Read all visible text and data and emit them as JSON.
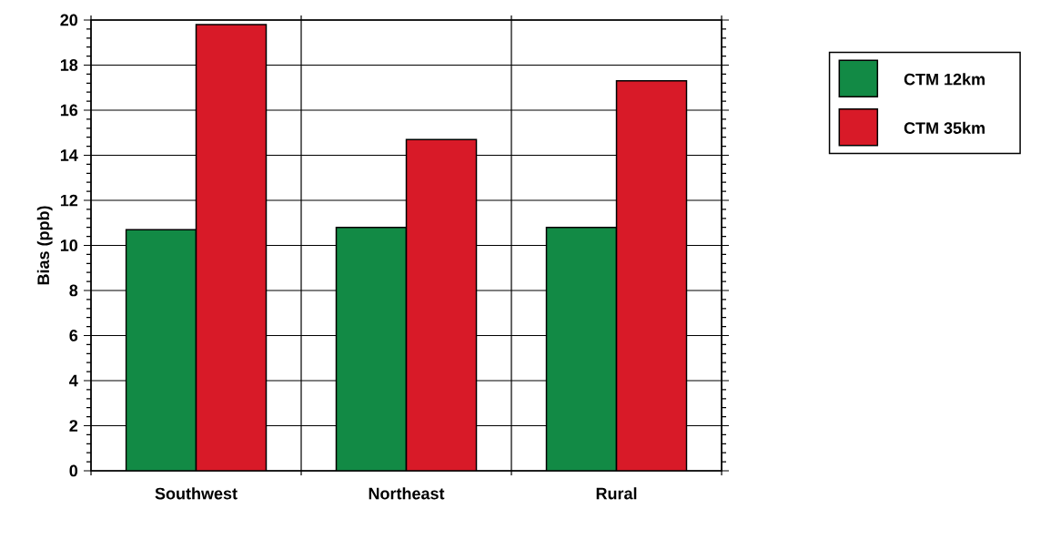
{
  "chart_data": {
    "type": "bar",
    "ylabel": "Bias (ppb)",
    "categories": [
      "Southwest",
      "Northeast",
      "Rural"
    ],
    "series": [
      {
        "name": "CTM 12km",
        "color": "#128a45",
        "values": [
          10.7,
          10.8,
          10.8
        ]
      },
      {
        "name": "CTM 35km",
        "color": "#d81a28",
        "values": [
          19.8,
          14.7,
          17.3
        ]
      }
    ],
    "ylim": [
      0,
      20
    ],
    "yticks": [
      0,
      2,
      4,
      6,
      8,
      10,
      12,
      14,
      16,
      18,
      20
    ],
    "grid": true,
    "legend": "top right"
  }
}
